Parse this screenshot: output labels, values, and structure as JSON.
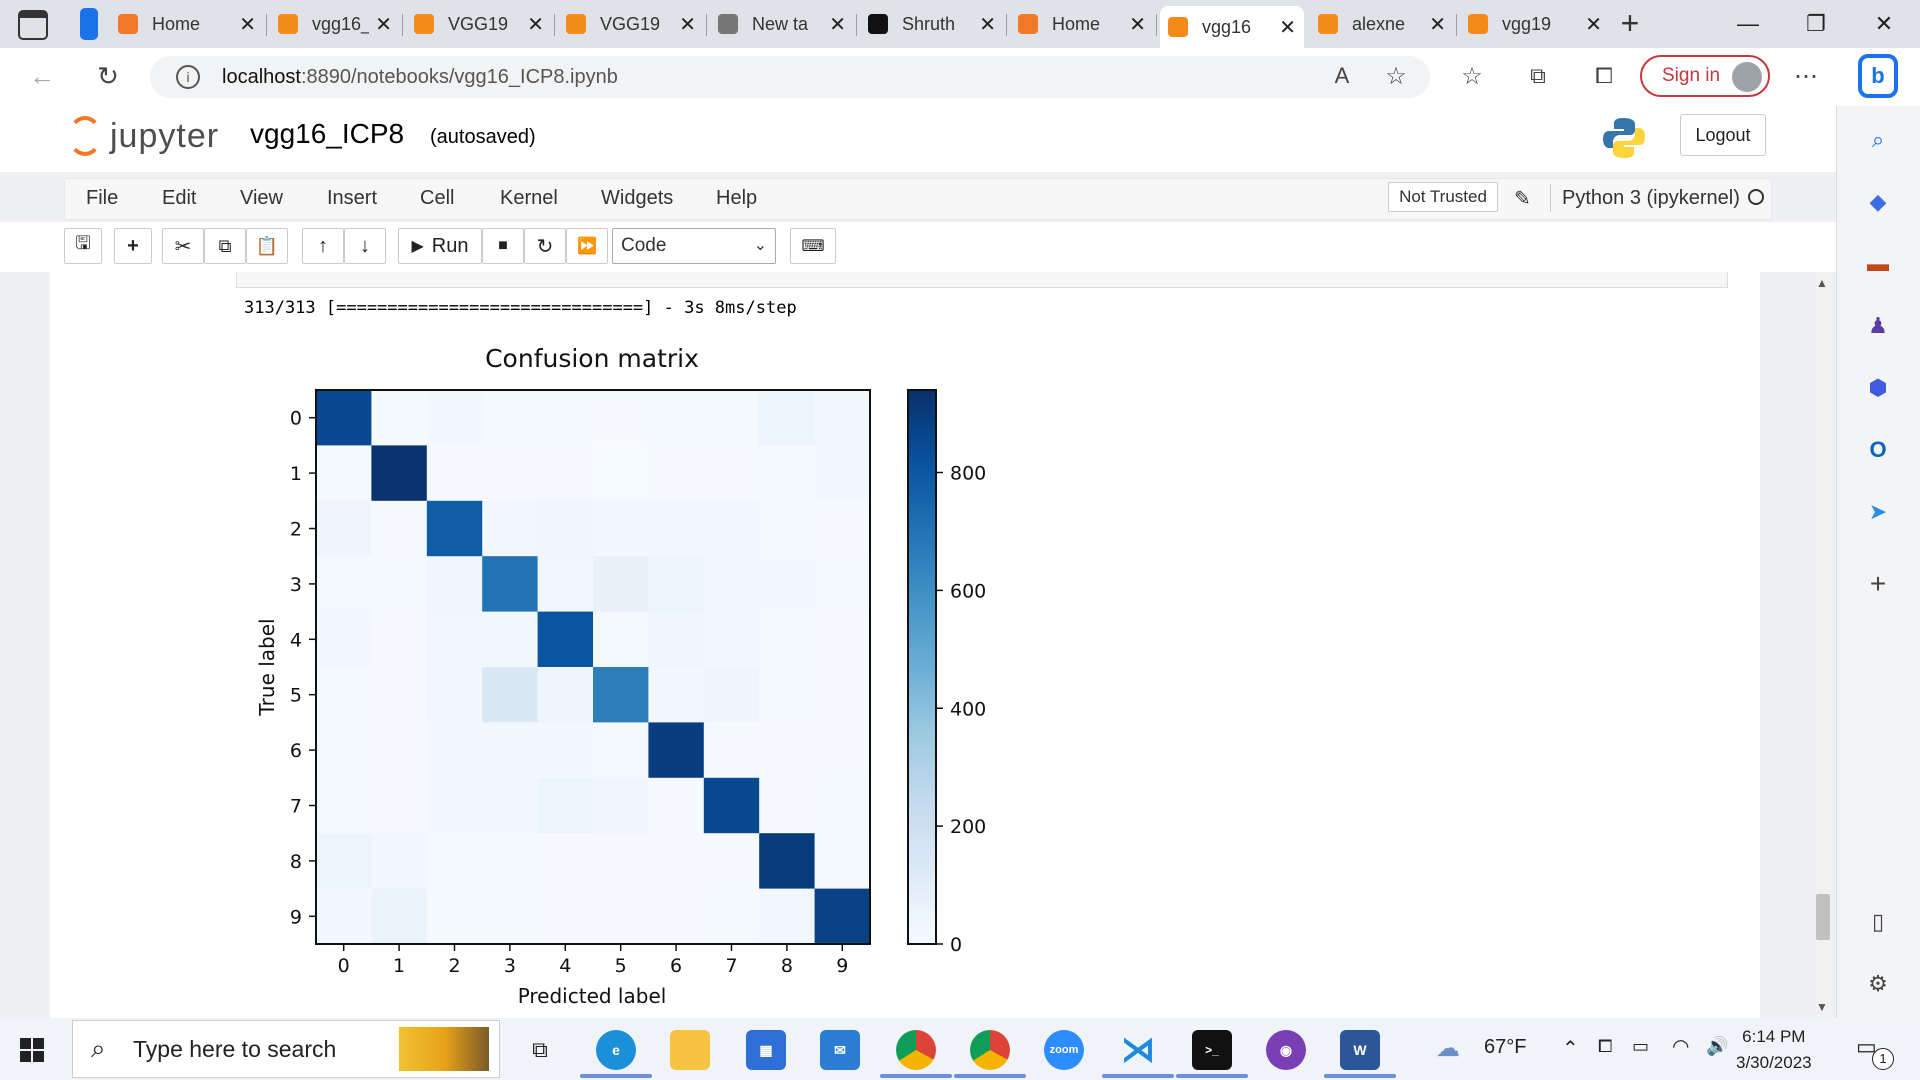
{
  "browser": {
    "tabs": [
      {
        "title": "Home",
        "icon": "jupyter-icon",
        "color": "#f37726"
      },
      {
        "title": "vgg16_",
        "icon": "notebook-icon",
        "color": "#f28b18"
      },
      {
        "title": "VGG19",
        "icon": "notebook-icon",
        "color": "#f28b18"
      },
      {
        "title": "VGG19",
        "icon": "notebook-icon",
        "color": "#f28b18"
      },
      {
        "title": "New ta",
        "icon": "newtab-icon",
        "color": "#777777"
      },
      {
        "title": "Shruth",
        "icon": "github-icon",
        "color": "#111111"
      },
      {
        "title": "Home",
        "icon": "jupyter-icon",
        "color": "#f37726"
      },
      {
        "title": "vgg16",
        "icon": "notebook-icon",
        "color": "#f28b18",
        "active": true
      },
      {
        "title": "alexne",
        "icon": "notebook-icon",
        "color": "#f28b18"
      },
      {
        "title": "vgg19",
        "icon": "notebook-icon",
        "color": "#f28b18"
      }
    ],
    "url_host": "localhost",
    "url_path": ":8890/notebooks/vgg16_ICP8.ipynb",
    "sign_in": "Sign in"
  },
  "jupyter": {
    "logo_text": "jupyter",
    "notebook_name": "vgg16_ICP8",
    "autosave": "(autosaved)",
    "logout": "Logout",
    "menu": [
      "File",
      "Edit",
      "View",
      "Insert",
      "Cell",
      "Kernel",
      "Widgets",
      "Help"
    ],
    "trust": "Not Trusted",
    "kernel": "Python 3 (ipykernel)",
    "run_label": "Run",
    "cell_type": "Code"
  },
  "output": {
    "progress_line": "313/313 [==============================] - 3s 8ms/step"
  },
  "chart_data": {
    "type": "heatmap",
    "title": "Confusion matrix",
    "xlabel": "Predicted label",
    "ylabel": "True label",
    "x_ticks": [
      "0",
      "1",
      "2",
      "3",
      "4",
      "5",
      "6",
      "7",
      "8",
      "9"
    ],
    "y_ticks": [
      "0",
      "1",
      "2",
      "3",
      "4",
      "5",
      "6",
      "7",
      "8",
      "9"
    ],
    "colormap": "Blues",
    "colorbar_ticks": [
      0,
      200,
      400,
      600,
      800
    ],
    "vmin": 0,
    "vmax": 940,
    "matrix": [
      [
        850,
        10,
        25,
        10,
        15,
        5,
        10,
        10,
        45,
        20
      ],
      [
        8,
        930,
        5,
        5,
        5,
        3,
        5,
        5,
        10,
        24
      ],
      [
        40,
        5,
        780,
        30,
        35,
        20,
        30,
        20,
        15,
        5
      ],
      [
        15,
        8,
        35,
        700,
        30,
        70,
        45,
        25,
        25,
        12
      ],
      [
        20,
        5,
        30,
        25,
        810,
        15,
        35,
        30,
        15,
        5
      ],
      [
        10,
        5,
        30,
        140,
        40,
        660,
        20,
        40,
        15,
        5
      ],
      [
        10,
        5,
        25,
        25,
        20,
        15,
        890,
        5,
        5,
        5
      ],
      [
        15,
        5,
        20,
        30,
        45,
        35,
        5,
        850,
        5,
        10
      ],
      [
        45,
        25,
        10,
        10,
        5,
        5,
        5,
        5,
        900,
        15
      ],
      [
        25,
        55,
        10,
        10,
        5,
        5,
        5,
        10,
        30,
        880
      ]
    ]
  },
  "taskbar": {
    "search_placeholder": "Type here to search",
    "temperature": "67°F",
    "time": "6:14 PM",
    "date": "3/30/2023",
    "notifications": "1"
  }
}
